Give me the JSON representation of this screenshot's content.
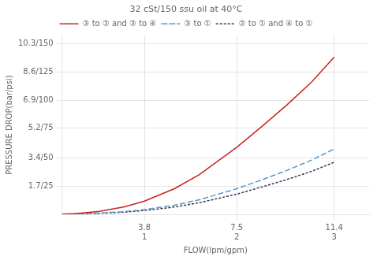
{
  "chart_data": {
    "type": "line",
    "subtitle": "32 cSt/150 ssu oil at 40°C",
    "xlabel": "FLOW(lpm/gpm)",
    "ylabel": "PRESSURE DROP(bar/psi)",
    "x": [
      0.5,
      1.0,
      2.0,
      3.0,
      3.8,
      5.0,
      6.0,
      7.5,
      8.5,
      9.5,
      10.5,
      11.4
    ],
    "series": [
      {
        "name": "③ to ② and ③ to ④",
        "color": "#cc2222",
        "line_style": "solid",
        "values": [
          0.01,
          0.04,
          0.18,
          0.45,
          0.8,
          1.55,
          2.4,
          4.05,
          5.3,
          6.6,
          8.0,
          9.5
        ]
      },
      {
        "name": "③ to ①",
        "color": "#5599cc",
        "line_style": "dashed",
        "values": [
          0.01,
          0.02,
          0.07,
          0.16,
          0.28,
          0.55,
          0.88,
          1.55,
          2.08,
          2.65,
          3.28,
          3.95
        ]
      },
      {
        "name": "② to ① and ④ to ①",
        "color": "#333355",
        "line_style": "dotted",
        "values": [
          0.01,
          0.02,
          0.06,
          0.13,
          0.23,
          0.44,
          0.7,
          1.22,
          1.65,
          2.1,
          2.6,
          3.15
        ]
      }
    ],
    "xlim": [
      0.5,
      12.8
    ],
    "xticks": [
      {
        "value": 3.8,
        "label": "3.8\n1"
      },
      {
        "value": 7.5,
        "label": "7.5\n2"
      },
      {
        "value": 11.4,
        "label": "11.4\n3"
      }
    ],
    "ylim": [
      0.0,
      10.8
    ],
    "yticks": [
      {
        "value": 1.7,
        "label": "1.7/25"
      },
      {
        "value": 3.4,
        "label": "3.4/50"
      },
      {
        "value": 5.2,
        "label": "5.2/75"
      },
      {
        "value": 6.9,
        "label": "6.9/100"
      },
      {
        "value": 8.6,
        "label": "8.6/125"
      },
      {
        "value": 10.3,
        "label": "10.3/150"
      }
    ],
    "grid": true,
    "legend": "top"
  }
}
